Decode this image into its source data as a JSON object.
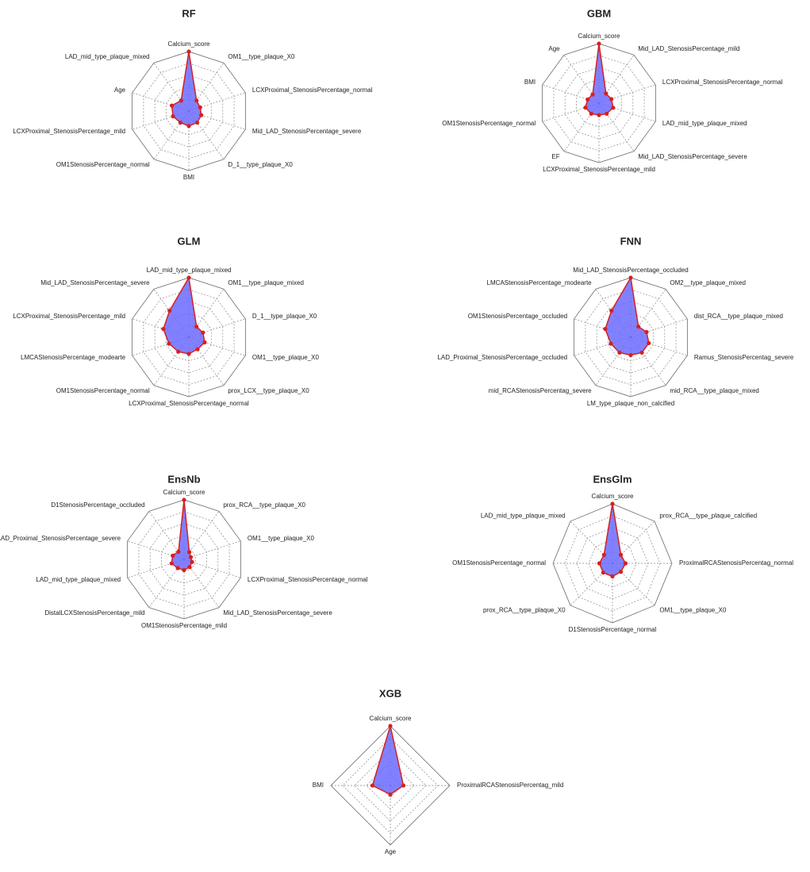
{
  "chart_data": [
    {
      "type": "radar",
      "title": "RF",
      "color": "#d62020",
      "fill": "#6b6bff",
      "ylim": [
        0,
        100
      ],
      "grid_rings": 5,
      "categories": [
        "Calcium_score",
        "OM1__type_plaque_X0",
        "LCXProximal_StenosisPercentage_normal",
        "Mid_LAD_StenosisPercentage_severe",
        "D_1__type_plaque_X0",
        "BMI",
        "OM1StenosisPercentage_normal",
        "LCXProximal_StenosisPercentage_mild",
        "Age",
        "LAD_mid_type_plaque_mixed"
      ],
      "values": [
        100,
        22,
        20,
        22,
        24,
        25,
        24,
        28,
        30,
        22
      ]
    },
    {
      "type": "radar",
      "title": "GBM",
      "color": "#d62020",
      "fill": "#6b6bff",
      "ylim": [
        0,
        100
      ],
      "grid_rings": 5,
      "categories": [
        "Calcium_score",
        "Mid_LAD_StenosisPercentage_mild",
        "LCXProximal_StenosisPercentage_normal",
        "LAD_mid_type_plaque_mixed",
        "Mid_LAD_StenosisPercentage_severe",
        "LCXProximal_StenosisPercentage_mild",
        "EF",
        "OM1StenosisPercentage_normal",
        "BMI",
        "Age"
      ],
      "values": [
        100,
        20,
        22,
        25,
        22,
        20,
        22,
        24,
        20,
        18
      ]
    },
    {
      "type": "radar",
      "title": "GLM",
      "color": "#d62020",
      "fill": "#6b6bff",
      "ylim": [
        0,
        100
      ],
      "grid_rings": 5,
      "categories": [
        "LAD_mid_type_plaque_mixed",
        "OM1__type_plaque_mixed",
        "D_1__type_plaque_X0",
        "OM1__type_plaque_X0",
        "prox_LCX__type_plaque_X0",
        "LCXProximal_StenosisPercentage_normal",
        "OM1StenosisPercentage_normal",
        "LMCAStenosisPercentage_modearte",
        "LCXProximal_StenosisPercentage_mild",
        "Mid_LAD_StenosisPercentage_severe"
      ],
      "values": [
        100,
        22,
        25,
        28,
        25,
        28,
        30,
        35,
        45,
        55
      ]
    },
    {
      "type": "radar",
      "title": "FNN",
      "color": "#d62020",
      "fill": "#6b6bff",
      "ylim": [
        0,
        100
      ],
      "grid_rings": 5,
      "categories": [
        "Mid_LAD_StenosisPercentage_occluded",
        "OM2__type_plaque_mixed",
        "dist_RCA__type_plaque_mixed",
        "Ramus_StenosisPercentag_severe",
        "mid_RCA__type_plaque_mixed",
        "LM_type_plaque_non_calcified",
        "mid_RCAStenosisPercentag_severe",
        "LAD_Proximal_StenosisPercentage_occluded",
        "OM1StenosisPercentage_occluded",
        "LMCAStenosisPercentage_modearte"
      ],
      "values": [
        100,
        22,
        28,
        32,
        32,
        30,
        32,
        35,
        45,
        55
      ]
    },
    {
      "type": "radar",
      "title": "EnsNb",
      "color": "#d62020",
      "fill": "#6b6bff",
      "ylim": [
        0,
        100
      ],
      "grid_rings": 5,
      "categories": [
        "Calcium_score",
        "prox_RCA__type_plaque_X0",
        "OM1__type_plaque_X0",
        "LCXProximal_StenosisPercentage_normal",
        "Mid_LAD_StenosisPercentage_severe",
        "OM1StenosisPercentage_mild",
        "DistalLCXStenosisPercentage_mild",
        "LAD_mid_type_plaque_mixed",
        "LAD_Proximal_StenosisPercentage_severe",
        "D1StenosisPercentage_occluded"
      ],
      "values": [
        100,
        15,
        12,
        14,
        16,
        18,
        18,
        22,
        20,
        16
      ]
    },
    {
      "type": "radar",
      "title": "EnsGlm",
      "color": "#d62020",
      "fill": "#6b6bff",
      "ylim": [
        0,
        100
      ],
      "grid_rings": 5,
      "categories": [
        "Calcium_score",
        "prox_RCA__type_plaque_calcified",
        "ProximalRCAStenosisPercentag_normal",
        "OM1__type_plaque_X0",
        "D1StenosisPercentage_normal",
        "prox_RCA__type_plaque_X0",
        "OM1StenosisPercentage_normal",
        "LAD_mid_type_plaque_mixed"
      ],
      "values": [
        100,
        20,
        22,
        20,
        22,
        22,
        22,
        20
      ]
    },
    {
      "type": "radar",
      "title": "XGB",
      "color": "#d62020",
      "fill": "#6b6bff",
      "ylim": [
        0,
        100
      ],
      "grid_rings": 5,
      "categories": [
        "Calcium_score",
        "ProximalRCAStenosisPercentag_mild",
        "Age",
        "BMI"
      ],
      "values": [
        100,
        22,
        15,
        30
      ]
    }
  ]
}
